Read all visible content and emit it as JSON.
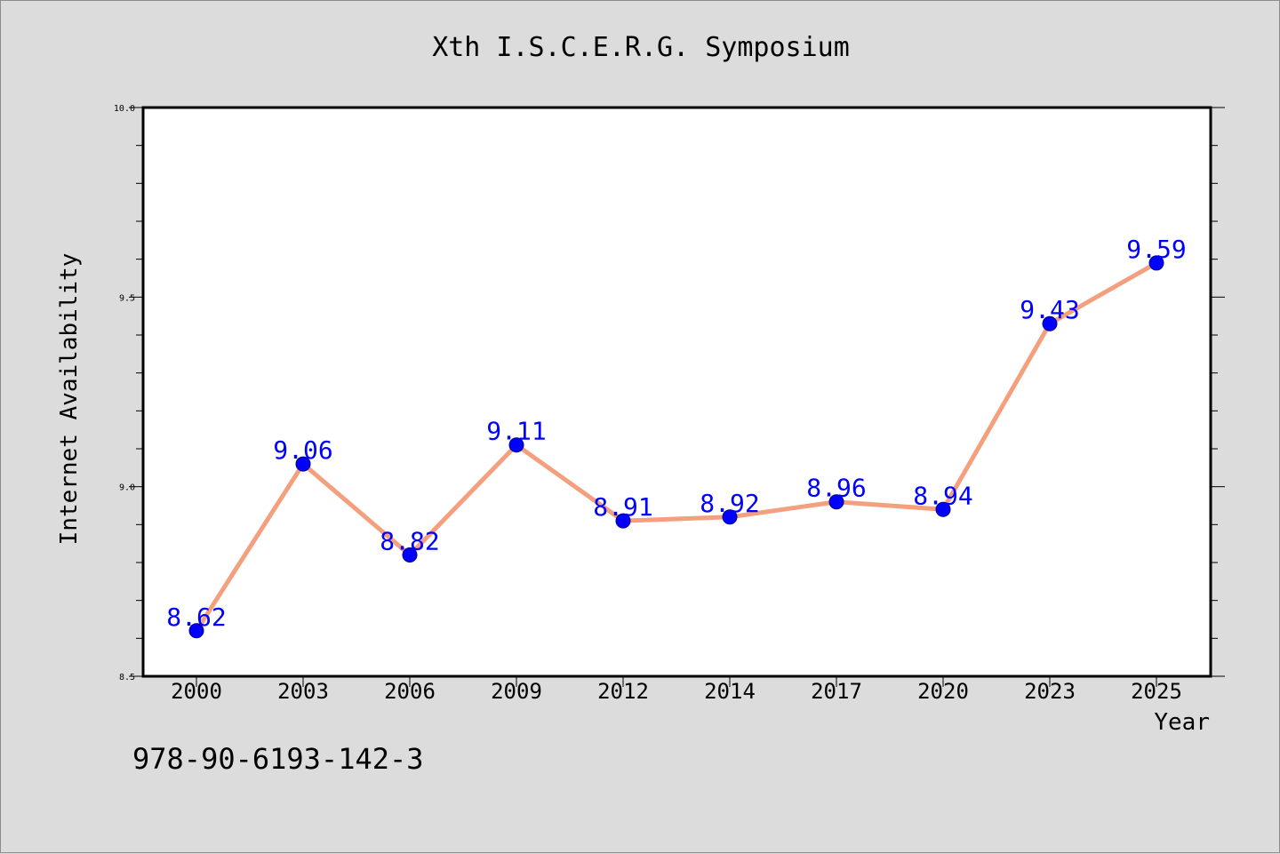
{
  "chart_data": {
    "type": "line",
    "title": "Xth I.S.C.E.R.G. Symposium",
    "xlabel": "Year",
    "ylabel": "Internet Availability",
    "categories": [
      "2000",
      "2003",
      "2006",
      "2009",
      "2012",
      "2014",
      "2017",
      "2020",
      "2023",
      "2025"
    ],
    "series": [
      {
        "values": [
          8.62,
          9.06,
          8.82,
          9.11,
          8.91,
          8.92,
          8.96,
          8.94,
          9.43,
          9.59
        ],
        "line_color": "#f4a07e",
        "marker_color": "#0000ff"
      }
    ],
    "data_labels": [
      "8.62",
      "9.06",
      "8.82",
      "9.11",
      "8.91",
      "8.92",
      "8.96",
      "8.94",
      "9.43",
      "9.59"
    ],
    "ylim": [
      8.5,
      10.0
    ],
    "y_major_ticks": [
      "8.5",
      "9.0",
      "9.5",
      "10.0"
    ],
    "grid": false,
    "legend": "none"
  },
  "footer_text": "978-90-6193-142-3"
}
